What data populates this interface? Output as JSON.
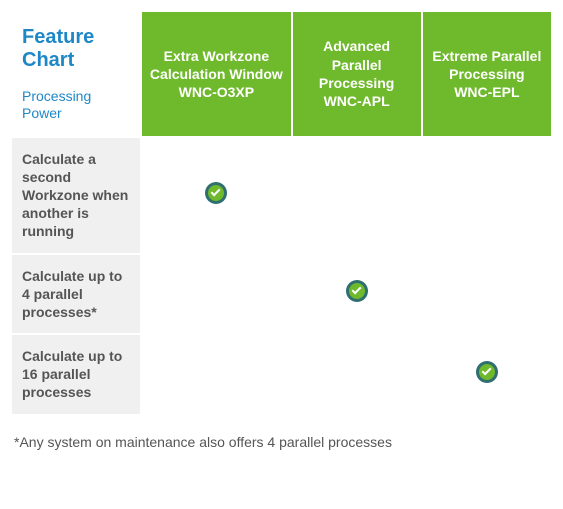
{
  "header": {
    "title": "Feature Chart",
    "subtitle": "Processing Power"
  },
  "columns": [
    "Extra Workzone Calculation Window WNC-O3XP",
    "Advanced Parallel Processing WNC-APL",
    "Extreme Parallel Processing WNC-EPL"
  ],
  "rows": [
    {
      "label": "Calculate a second Workzone when another is running",
      "checks": [
        true,
        false,
        false
      ]
    },
    {
      "label": "Calculate up to 4 parallel processes*",
      "checks": [
        false,
        true,
        false
      ]
    },
    {
      "label": "Calculate up to 16 parallel processes",
      "checks": [
        false,
        false,
        true
      ]
    }
  ],
  "footnote": "*Any system on maintenance also offers 4 parallel processes",
  "colors": {
    "header_bg": "#6fb92c",
    "header_text": "#ffffff",
    "title_text": "#1e88c7",
    "row_label_bg": "#f0f0f0",
    "row_label_text": "#555555",
    "check_outer": "#2f6f6f",
    "check_inner": "#6fb92c",
    "check_mark": "#ffffff",
    "footnote_text": "#555555"
  }
}
